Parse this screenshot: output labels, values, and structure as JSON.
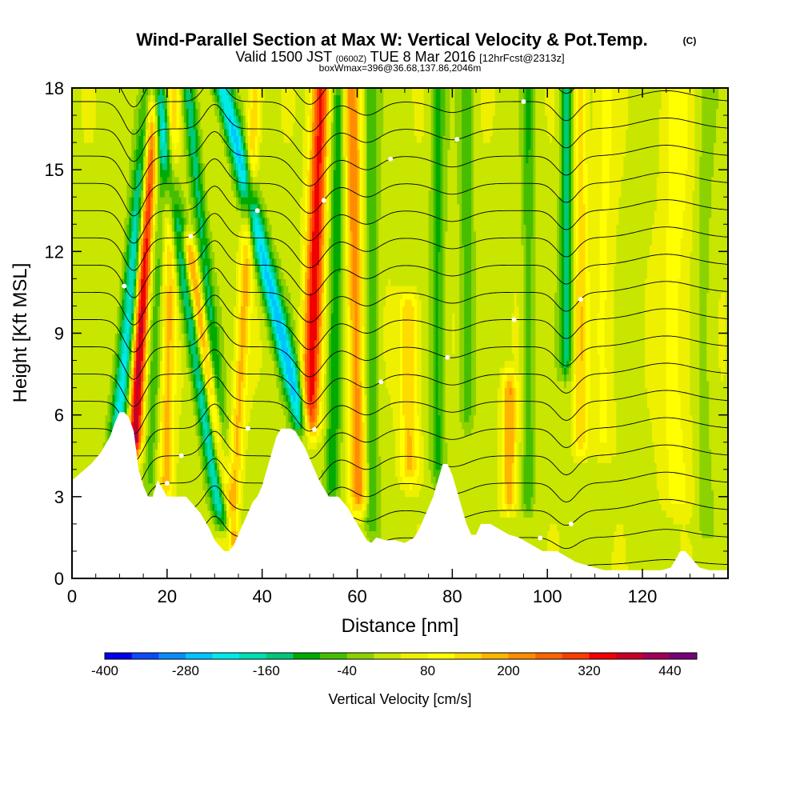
{
  "chart_data": {
    "type": "heatmap",
    "title": "Wind-Parallel Section at Max W: Vertical Velocity & Pot.Temp.",
    "title_mark": "(C)",
    "subtitle": {
      "valid": "Valid 1500 JST",
      "utc": "(0600Z)",
      "date": "TUE 8 Mar 2016",
      "forecast": "[12hrFcst@2313z]"
    },
    "subtitle2": "boxWmax=396@36.68,137.86,2046m",
    "xlabel": "Distance [nm]",
    "ylabel": "Height [Kft MSL]",
    "xlim": [
      0,
      138
    ],
    "ylim": [
      0,
      18
    ],
    "xticks": [
      "0",
      "20",
      "40",
      "60",
      "80",
      "100",
      "120"
    ],
    "xtick_values": [
      0,
      20,
      40,
      60,
      80,
      100,
      120
    ],
    "yticks": [
      "0",
      "3",
      "6",
      "9",
      "12",
      "15",
      "18"
    ],
    "ytick_values": [
      0,
      3,
      6,
      9,
      12,
      15,
      18
    ],
    "colorbar": {
      "label": "Vertical Velocity [cm/s]",
      "ticks": [
        "-400",
        "-280",
        "-160",
        "-40",
        "80",
        "200",
        "320",
        "440"
      ],
      "tick_values": [
        -400,
        -280,
        -160,
        -40,
        80,
        200,
        320,
        440
      ],
      "levels": [
        -400,
        -360,
        -320,
        -280,
        -240,
        -200,
        -160,
        -120,
        -80,
        -40,
        0,
        40,
        80,
        120,
        160,
        200,
        240,
        280,
        320,
        360,
        400,
        440,
        480
      ],
      "colors": [
        "#0000ee",
        "#0a4cff",
        "#0a8cff",
        "#00c4ff",
        "#00eaea",
        "#00dcb4",
        "#00c878",
        "#00aa00",
        "#46be00",
        "#8cd200",
        "#c8e600",
        "#eef000",
        "#ffff00",
        "#ffdc00",
        "#ffb400",
        "#ff8c00",
        "#ff6400",
        "#ff3c00",
        "#f00000",
        "#c80028",
        "#a0005a",
        "#780078"
      ]
    },
    "terrain": {
      "color": "#ffffff",
      "x": [
        0,
        2,
        4,
        6,
        8,
        9,
        10,
        11,
        12,
        13,
        14,
        15,
        16,
        17,
        18,
        20,
        22,
        24,
        25,
        26,
        27,
        28,
        29,
        30,
        31,
        32,
        33,
        34,
        35,
        36,
        37,
        38,
        39,
        40,
        41,
        42,
        43,
        44,
        46,
        47,
        48,
        49,
        50,
        51,
        52,
        53,
        54,
        55,
        56,
        57,
        58,
        59,
        60,
        61,
        62,
        63,
        64,
        66,
        68,
        70,
        72,
        73,
        74,
        75,
        76,
        77,
        78,
        79,
        80,
        81,
        82,
        83,
        84,
        85,
        86,
        88,
        90,
        92,
        94,
        95,
        96,
        97,
        98,
        99,
        100,
        102,
        104,
        106,
        108,
        110,
        112,
        114,
        116,
        118,
        120,
        122,
        124,
        126,
        128,
        129,
        130,
        131,
        132,
        134,
        136,
        138
      ],
      "h": [
        3.6,
        3.9,
        4.2,
        4.6,
        5.2,
        5.7,
        6.1,
        6.1,
        5.9,
        5.4,
        4.0,
        3.4,
        3.0,
        3.0,
        3.6,
        3.0,
        3.0,
        3.0,
        2.8,
        2.6,
        2.4,
        2.1,
        1.8,
        1.4,
        1.2,
        1.0,
        1.0,
        1.2,
        1.6,
        2.0,
        2.4,
        2.8,
        3.0,
        3.4,
        4.0,
        4.6,
        5.2,
        5.5,
        5.5,
        5.4,
        5.1,
        4.8,
        4.4,
        4.0,
        3.6,
        3.3,
        3.0,
        3.0,
        3.0,
        2.8,
        2.6,
        2.3,
        2.0,
        1.7,
        1.4,
        1.3,
        1.5,
        1.4,
        1.4,
        1.3,
        1.5,
        1.8,
        2.2,
        2.6,
        3.0,
        3.6,
        4.2,
        4.2,
        3.8,
        3.2,
        2.6,
        2.0,
        1.6,
        1.6,
        2.0,
        2.0,
        1.8,
        1.6,
        1.5,
        1.4,
        1.3,
        1.2,
        1.1,
        1.0,
        1.0,
        1.0,
        0.8,
        0.6,
        0.5,
        0.4,
        0.3,
        0.3,
        0.3,
        0.3,
        0.3,
        0.3,
        0.3,
        0.4,
        1.0,
        1.0,
        0.8,
        0.6,
        0.4,
        0.3,
        0.3,
        0.3
      ]
    },
    "velocity_bands": [
      {
        "x0": 10,
        "slope": 0.55,
        "w": 1.8,
        "amp": -260,
        "ymin": 4.5,
        "ymax": 18
      },
      {
        "x0": 13.5,
        "slope": 0.3,
        "w": 1.5,
        "amp": 380,
        "ymin": 5,
        "ymax": 18
      },
      {
        "x0": 17,
        "slope": 0.2,
        "w": 1.5,
        "amp": -80,
        "ymin": 3.5,
        "ymax": 18
      },
      {
        "x0": 20,
        "slope": 0.1,
        "w": 1.6,
        "amp": 150,
        "ymin": 3.5,
        "ymax": 18
      },
      {
        "x0": 28,
        "slope": -0.85,
        "w": 1.7,
        "amp": -220,
        "ymin": 2.5,
        "ymax": 18
      },
      {
        "x0": 30,
        "slope": -0.9,
        "w": 1.4,
        "amp": 230,
        "ymin": 1.5,
        "ymax": 12
      },
      {
        "x0": 31,
        "slope": -0.55,
        "w": 1.4,
        "amp": -150,
        "ymin": 2,
        "ymax": 18
      },
      {
        "x0": 35,
        "slope": 0.3,
        "w": 1.4,
        "amp": 140,
        "ymin": 3,
        "ymax": 18
      },
      {
        "x0": 48,
        "slope": -1.35,
        "w": 2.0,
        "amp": -280,
        "ymin": 5.5,
        "ymax": 18
      },
      {
        "x0": 50,
        "slope": 0.2,
        "w": 1.9,
        "amp": 320,
        "ymin": 5.5,
        "ymax": 18
      },
      {
        "x0": 55,
        "slope": 0.1,
        "w": 1.5,
        "amp": -140,
        "ymin": 3.5,
        "ymax": 18
      },
      {
        "x0": 60,
        "slope": -0.1,
        "w": 1.8,
        "amp": 200,
        "ymin": 3,
        "ymax": 18
      },
      {
        "x0": 63,
        "slope": 0.0,
        "w": 1.5,
        "amp": -100,
        "ymin": 2,
        "ymax": 18
      },
      {
        "x0": 71,
        "slope": 0.0,
        "w": 2.0,
        "amp": 140,
        "ymin": 4,
        "ymax": 10
      },
      {
        "x0": 77,
        "slope": 0.0,
        "w": 1.5,
        "amp": -110,
        "ymin": 4,
        "ymax": 18
      },
      {
        "x0": 83,
        "slope": 0.0,
        "w": 1.5,
        "amp": -90,
        "ymin": 6,
        "ymax": 18
      },
      {
        "x0": 92,
        "slope": 0.0,
        "w": 1.6,
        "amp": 170,
        "ymin": 3,
        "ymax": 7
      },
      {
        "x0": 96,
        "slope": 0.0,
        "w": 1.2,
        "amp": -100,
        "ymin": 3,
        "ymax": 18
      },
      {
        "x0": 104,
        "slope": 0.0,
        "w": 1.3,
        "amp": -170,
        "ymin": 8,
        "ymax": 18
      },
      {
        "x0": 107,
        "slope": 0.0,
        "w": 1.5,
        "amp": 120,
        "ymin": 5,
        "ymax": 18
      },
      {
        "x0": 112,
        "slope": 0.0,
        "w": 2.5,
        "amp": 60,
        "ymin": 5,
        "ymax": 18
      },
      {
        "x0": 127,
        "slope": 0.0,
        "w": 3.5,
        "amp": 70,
        "ymin": 3,
        "ymax": 18
      },
      {
        "x0": 133,
        "slope": 0.0,
        "w": 2.0,
        "amp": -40,
        "ymin": 2,
        "ymax": 18
      }
    ],
    "isentropes": {
      "theta_min": 273,
      "theta_max": 315,
      "step": 2,
      "base_theta": 276,
      "lapse_per_kft": 2.0,
      "waves": [
        {
          "x": 13,
          "amp": 1.2,
          "w": 3
        },
        {
          "x": 30,
          "amp": -0.9,
          "w": 3
        },
        {
          "x": 50,
          "amp": 1.1,
          "w": 4
        },
        {
          "x": 62,
          "amp": 0.5,
          "w": 4
        },
        {
          "x": 80,
          "amp": 0.4,
          "w": 5
        },
        {
          "x": 104,
          "amp": 0.7,
          "w": 3
        },
        {
          "x": 125,
          "amp": -0.4,
          "w": 8
        }
      ]
    }
  }
}
